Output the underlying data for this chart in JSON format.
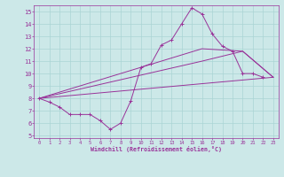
{
  "xlabel": "Windchill (Refroidissement éolien,°C)",
  "background_color": "#cce8e8",
  "grid_color": "#aad4d4",
  "line_color": "#993399",
  "xlim": [
    -0.5,
    23.5
  ],
  "ylim": [
    4.8,
    15.5
  ],
  "xticks": [
    0,
    1,
    2,
    3,
    4,
    5,
    6,
    7,
    8,
    9,
    10,
    11,
    12,
    13,
    14,
    15,
    16,
    17,
    18,
    19,
    20,
    21,
    22,
    23
  ],
  "yticks": [
    5,
    6,
    7,
    8,
    9,
    10,
    11,
    12,
    13,
    14,
    15
  ],
  "line1_x": [
    0,
    1,
    2,
    3,
    4,
    5,
    6,
    7,
    8,
    9,
    10,
    11,
    12,
    13,
    14,
    15,
    16,
    17,
    18,
    19,
    20,
    21,
    22
  ],
  "line1_y": [
    8.0,
    7.7,
    7.3,
    6.7,
    6.7,
    6.7,
    6.2,
    5.5,
    6.0,
    7.8,
    10.5,
    10.8,
    12.3,
    12.7,
    14.0,
    15.3,
    14.8,
    13.2,
    12.2,
    11.8,
    10.0,
    10.0,
    9.7
  ],
  "line2_x": [
    0,
    23
  ],
  "line2_y": [
    8.0,
    9.7
  ],
  "line3_x": [
    0,
    16,
    20,
    23
  ],
  "line3_y": [
    8.0,
    11.0,
    11.8,
    9.7
  ],
  "line4_x": [
    0,
    16,
    20,
    23
  ],
  "line4_y": [
    8.0,
    12.0,
    11.8,
    9.7
  ]
}
